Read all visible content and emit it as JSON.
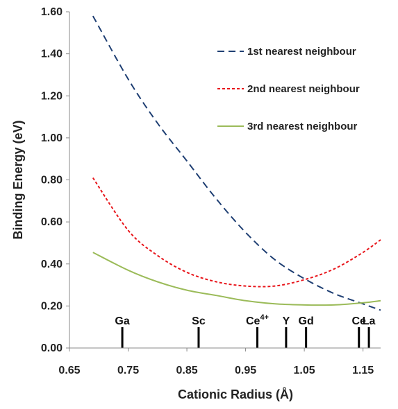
{
  "chart_data": {
    "type": "line",
    "xlabel": "Cationic Radius (Å)",
    "ylabel": "Binding Energy (eV)",
    "xlim": [
      0.65,
      1.18
    ],
    "ylim": [
      0.0,
      1.6
    ],
    "x_ticks": [
      "0.65",
      "0.75",
      "0.85",
      "0.95",
      "1.05",
      "1.15"
    ],
    "y_ticks": [
      "0.00",
      "0.20",
      "0.40",
      "0.60",
      "0.80",
      "1.00",
      "1.20",
      "1.40",
      "1.60"
    ],
    "legend_position": "top-right",
    "x": [
      0.69,
      0.75,
      0.8,
      0.85,
      0.9,
      0.95,
      1.0,
      1.05,
      1.1,
      1.15,
      1.18
    ],
    "series": [
      {
        "name": "1st nearest neighbour",
        "color": "#1f3f73",
        "dash": "dashed",
        "values": [
          1.58,
          1.28,
          1.07,
          0.89,
          0.71,
          0.55,
          0.42,
          0.33,
          0.26,
          0.21,
          0.18
        ]
      },
      {
        "name": "2nd nearest neighbour",
        "color": "#e8141a",
        "dash": "dotted",
        "values": [
          0.81,
          0.56,
          0.44,
          0.36,
          0.315,
          0.295,
          0.295,
          0.325,
          0.375,
          0.455,
          0.515
        ]
      },
      {
        "name": "3rd nearest neighbour",
        "color": "#9bbb59",
        "dash": "solid",
        "values": [
          0.455,
          0.37,
          0.315,
          0.275,
          0.25,
          0.225,
          0.21,
          0.205,
          0.205,
          0.215,
          0.225
        ]
      }
    ],
    "markers": [
      {
        "label": "Ga",
        "sup": "",
        "x": 0.74
      },
      {
        "label": "Sc",
        "sup": "",
        "x": 0.87
      },
      {
        "label": "Ce",
        "sup": "4+",
        "x": 0.97
      },
      {
        "label": "Y",
        "sup": "",
        "x": 1.019
      },
      {
        "label": "Gd",
        "sup": "",
        "x": 1.053
      },
      {
        "label": "Ce",
        "sup": "",
        "x": 1.143
      },
      {
        "label": "La",
        "sup": "",
        "x": 1.16
      }
    ]
  }
}
